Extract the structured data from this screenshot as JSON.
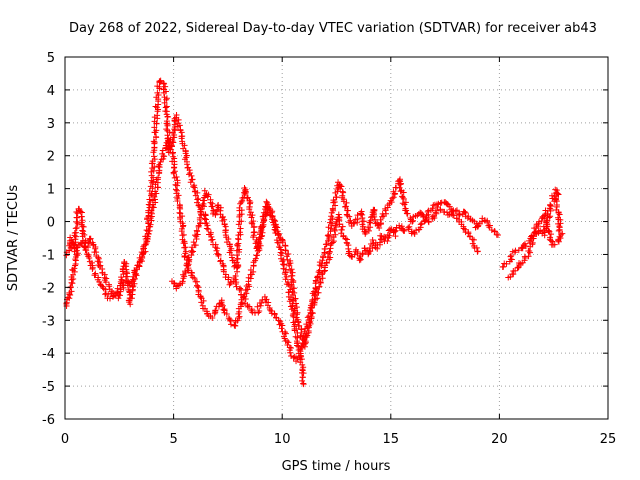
{
  "chart_data": {
    "type": "scatter",
    "title": "Day 268 of 2022, Sidereal Day-to-day VTEC variation (SDTVAR) for receiver ab43",
    "xlabel": "GPS time / hours",
    "ylabel": "SDTVAR / TECUs",
    "xlim": [
      0,
      25
    ],
    "ylim": [
      -6,
      5
    ],
    "xticks": [
      0,
      5,
      10,
      15,
      20,
      25
    ],
    "yticks": [
      -6,
      -5,
      -4,
      -3,
      -2,
      -1,
      0,
      1,
      2,
      3,
      4,
      5
    ],
    "grid": true,
    "marker": "+",
    "color": "#ff0000",
    "series": [
      {
        "name": "ab43",
        "trace": [
          [
            0.0,
            -1.1
          ],
          [
            0.1,
            -1.0
          ],
          [
            0.2,
            -0.8
          ],
          [
            0.3,
            -0.5
          ],
          [
            0.4,
            -0.9
          ],
          [
            0.5,
            -0.3
          ],
          [
            0.6,
            0.4
          ],
          [
            0.7,
            0.3
          ],
          [
            0.8,
            -0.2
          ],
          [
            0.9,
            -0.6
          ],
          [
            1.0,
            -0.8
          ],
          [
            1.2,
            -0.5
          ],
          [
            1.4,
            -0.9
          ],
          [
            1.6,
            -1.3
          ],
          [
            1.8,
            -1.7
          ],
          [
            2.0,
            -2.0
          ],
          [
            2.2,
            -2.2
          ],
          [
            2.4,
            -2.3
          ],
          [
            2.6,
            -2.1
          ],
          [
            2.8,
            -1.8
          ],
          [
            3.0,
            -1.9
          ],
          [
            3.2,
            -1.7
          ],
          [
            3.4,
            -1.3
          ],
          [
            3.6,
            -1.0
          ],
          [
            3.8,
            -0.3
          ],
          [
            4.0,
            1.2
          ],
          [
            4.2,
            3.2
          ],
          [
            4.3,
            4.2
          ],
          [
            4.4,
            4.3
          ],
          [
            4.5,
            4.2
          ],
          [
            4.6,
            4.0
          ],
          [
            4.7,
            3.0
          ],
          [
            4.8,
            2.1
          ],
          [
            5.0,
            2.6
          ],
          [
            5.1,
            3.2
          ],
          [
            5.2,
            3.0
          ],
          [
            5.4,
            2.5
          ],
          [
            5.6,
            1.8
          ],
          [
            5.8,
            1.3
          ],
          [
            6.0,
            0.9
          ],
          [
            6.2,
            0.4
          ],
          [
            6.4,
            0.2
          ],
          [
            6.6,
            -0.2
          ],
          [
            6.8,
            -0.6
          ],
          [
            7.0,
            -0.9
          ],
          [
            7.2,
            -1.2
          ],
          [
            7.4,
            -1.6
          ],
          [
            7.6,
            -1.9
          ],
          [
            7.8,
            -1.7
          ],
          [
            8.0,
            -2.0
          ],
          [
            8.2,
            -2.3
          ],
          [
            8.4,
            -2.5
          ],
          [
            8.6,
            -2.7
          ],
          [
            8.8,
            -2.8
          ],
          [
            9.0,
            -2.5
          ],
          [
            9.2,
            -2.3
          ],
          [
            9.4,
            -2.6
          ],
          [
            9.6,
            -2.8
          ],
          [
            9.8,
            -3.0
          ],
          [
            10.0,
            -3.2
          ],
          [
            10.2,
            -3.6
          ],
          [
            10.4,
            -4.0
          ],
          [
            10.6,
            -4.2
          ],
          [
            10.8,
            -4.1
          ],
          [
            11.0,
            -3.6
          ],
          [
            11.2,
            -3.0
          ],
          [
            11.4,
            -2.4
          ],
          [
            11.6,
            -1.8
          ],
          [
            11.8,
            -1.2
          ],
          [
            12.0,
            -0.8
          ],
          [
            12.2,
            -0.2
          ],
          [
            12.4,
            0.6
          ],
          [
            12.6,
            1.2
          ],
          [
            12.8,
            0.8
          ],
          [
            13.0,
            0.3
          ],
          [
            13.2,
            -0.1
          ],
          [
            13.4,
            0.0
          ],
          [
            13.6,
            0.3
          ],
          [
            13.8,
            -0.4
          ],
          [
            14.0,
            -0.2
          ],
          [
            14.2,
            0.4
          ],
          [
            14.4,
            -0.2
          ],
          [
            14.6,
            0.1
          ],
          [
            14.8,
            0.4
          ],
          [
            15.0,
            0.6
          ],
          [
            15.2,
            1.0
          ],
          [
            15.4,
            1.3
          ],
          [
            15.6,
            0.6
          ],
          [
            15.8,
            0.2
          ],
          [
            16.0,
            0.0
          ],
          [
            16.2,
            0.2
          ],
          [
            16.4,
            0.3
          ],
          [
            16.6,
            0.1
          ],
          [
            16.8,
            0.3
          ],
          [
            17.0,
            0.5
          ],
          [
            17.2,
            0.5
          ],
          [
            17.4,
            0.6
          ],
          [
            17.6,
            0.5
          ],
          [
            17.8,
            0.4
          ],
          [
            18.0,
            0.3
          ],
          [
            18.2,
            0.2
          ],
          [
            18.4,
            0.3
          ],
          [
            18.6,
            0.1
          ],
          [
            18.8,
            0.0
          ],
          [
            19.0,
            -0.2
          ],
          [
            19.2,
            0.1
          ],
          [
            19.4,
            0.0
          ],
          [
            19.6,
            -0.2
          ],
          [
            19.8,
            -0.3
          ],
          [
            20.0,
            -0.5
          ]
        ],
        "trace2": [
          [
            0.0,
            -2.6
          ],
          [
            0.1,
            -2.4
          ],
          [
            0.2,
            -2.2
          ],
          [
            0.3,
            -1.9
          ],
          [
            0.4,
            -1.5
          ],
          [
            0.5,
            -1.1
          ],
          [
            0.6,
            -0.7
          ],
          [
            0.8,
            -0.6
          ],
          [
            1.0,
            -0.9
          ],
          [
            1.2,
            -1.3
          ],
          [
            1.4,
            -1.6
          ],
          [
            1.6,
            -1.9
          ],
          [
            1.8,
            -2.1
          ],
          [
            2.0,
            -2.3
          ],
          [
            2.2,
            -2.3
          ],
          [
            2.4,
            -2.2
          ],
          [
            2.6,
            -1.8
          ],
          [
            2.8,
            -1.2
          ],
          [
            3.0,
            -2.5
          ],
          [
            3.2,
            -1.6
          ],
          [
            3.4,
            -1.2
          ],
          [
            3.6,
            -0.9
          ],
          [
            3.8,
            -0.5
          ],
          [
            4.0,
            0.2
          ],
          [
            4.2,
            1.0
          ],
          [
            4.4,
            1.8
          ],
          [
            4.6,
            2.2
          ],
          [
            4.8,
            2.5
          ],
          [
            5.0,
            1.8
          ],
          [
            5.2,
            0.8
          ],
          [
            5.4,
            -0.2
          ],
          [
            5.6,
            -1.2
          ],
          [
            5.8,
            -1.6
          ],
          [
            6.0,
            -1.8
          ],
          [
            6.2,
            -2.2
          ],
          [
            6.4,
            -2.6
          ],
          [
            6.6,
            -2.8
          ],
          [
            6.8,
            -2.9
          ],
          [
            7.0,
            -2.6
          ],
          [
            7.2,
            -2.4
          ],
          [
            7.4,
            -2.8
          ],
          [
            7.6,
            -3.0
          ],
          [
            7.8,
            -3.2
          ],
          [
            8.0,
            -2.8
          ],
          [
            8.2,
            -2.3
          ],
          [
            8.4,
            -2.0
          ],
          [
            8.6,
            -1.5
          ],
          [
            8.8,
            -1.0
          ],
          [
            9.0,
            -0.5
          ],
          [
            9.2,
            0.2
          ],
          [
            9.4,
            0.4
          ],
          [
            9.6,
            0.0
          ],
          [
            9.8,
            -0.3
          ],
          [
            10.0,
            -0.6
          ],
          [
            10.2,
            -0.9
          ],
          [
            10.4,
            -1.5
          ],
          [
            10.6,
            -2.5
          ],
          [
            10.8,
            -3.2
          ],
          [
            11.0,
            -3.8
          ],
          [
            11.2,
            -3.3
          ],
          [
            11.4,
            -2.6
          ],
          [
            11.6,
            -2.2
          ],
          [
            11.8,
            -1.7
          ],
          [
            12.0,
            -1.4
          ],
          [
            12.2,
            -1.0
          ],
          [
            12.4,
            -0.3
          ],
          [
            12.6,
            0.2
          ],
          [
            12.8,
            -0.4
          ],
          [
            13.0,
            -0.7
          ],
          [
            13.2,
            -1.1
          ],
          [
            13.4,
            -0.9
          ],
          [
            13.6,
            -1.2
          ],
          [
            13.8,
            -0.8
          ],
          [
            14.0,
            -1.0
          ],
          [
            14.2,
            -0.6
          ],
          [
            14.4,
            -0.8
          ],
          [
            14.6,
            -0.4
          ],
          [
            14.8,
            -0.6
          ],
          [
            15.0,
            -0.2
          ],
          [
            15.2,
            -0.4
          ],
          [
            15.4,
            -0.1
          ],
          [
            15.6,
            -0.3
          ],
          [
            15.8,
            -0.2
          ],
          [
            16.0,
            -0.4
          ],
          [
            16.2,
            -0.3
          ],
          [
            16.4,
            -0.1
          ],
          [
            16.6,
            0.1
          ],
          [
            16.8,
            0.0
          ],
          [
            17.0,
            0.2
          ],
          [
            17.2,
            0.4
          ],
          [
            17.4,
            0.3
          ],
          [
            17.6,
            0.2
          ],
          [
            17.8,
            0.3
          ],
          [
            18.0,
            0.1
          ],
          [
            18.2,
            0.0
          ],
          [
            18.4,
            -0.2
          ],
          [
            18.6,
            -0.4
          ],
          [
            18.8,
            -0.6
          ],
          [
            19.0,
            -1.0
          ]
        ],
        "trace3": [
          [
            4.9,
            -1.8
          ],
          [
            5.1,
            -2.0
          ],
          [
            5.3,
            -1.9
          ],
          [
            5.5,
            -1.6
          ],
          [
            5.7,
            -1.2
          ],
          [
            5.9,
            -0.8
          ],
          [
            6.1,
            -0.3
          ],
          [
            6.3,
            0.3
          ],
          [
            6.5,
            0.9
          ],
          [
            6.7,
            0.6
          ],
          [
            6.9,
            0.2
          ],
          [
            7.1,
            0.5
          ],
          [
            7.3,
            0.0
          ],
          [
            7.5,
            -0.6
          ],
          [
            7.7,
            -1.1
          ],
          [
            7.9,
            -1.5
          ],
          [
            8.1,
            0.5
          ],
          [
            8.3,
            1.0
          ],
          [
            8.5,
            0.6
          ],
          [
            8.7,
            -0.4
          ],
          [
            8.9,
            -0.9
          ],
          [
            9.1,
            0.0
          ],
          [
            9.3,
            0.6
          ],
          [
            9.5,
            0.3
          ],
          [
            9.7,
            -0.2
          ],
          [
            9.9,
            -0.8
          ],
          [
            10.1,
            -1.4
          ],
          [
            10.3,
            -2.0
          ],
          [
            10.5,
            -2.8
          ],
          [
            10.7,
            -3.6
          ],
          [
            10.9,
            -4.4
          ],
          [
            11.0,
            -5.0
          ]
        ],
        "trace4": [
          [
            20.2,
            -1.4
          ],
          [
            20.4,
            -1.2
          ],
          [
            20.6,
            -1.0
          ],
          [
            20.8,
            -0.9
          ],
          [
            21.0,
            -0.8
          ],
          [
            21.2,
            -0.7
          ],
          [
            21.4,
            -0.5
          ],
          [
            21.6,
            -0.4
          ],
          [
            21.8,
            -0.3
          ],
          [
            22.0,
            -0.4
          ],
          [
            22.2,
            0.0
          ],
          [
            22.4,
            0.5
          ],
          [
            22.6,
            1.0
          ],
          [
            22.8,
            -0.2
          ],
          [
            22.9,
            -0.4
          ],
          [
            22.7,
            -0.6
          ],
          [
            22.5,
            -0.7
          ],
          [
            22.3,
            -0.4
          ],
          [
            22.1,
            0.3
          ],
          [
            21.9,
            0.0
          ],
          [
            21.7,
            -0.2
          ],
          [
            21.5,
            -0.7
          ],
          [
            21.3,
            -1.0
          ],
          [
            21.1,
            -1.2
          ],
          [
            20.9,
            -1.3
          ],
          [
            20.7,
            -1.5
          ],
          [
            20.5,
            -1.6
          ],
          [
            20.3,
            -1.7
          ]
        ]
      }
    ]
  }
}
